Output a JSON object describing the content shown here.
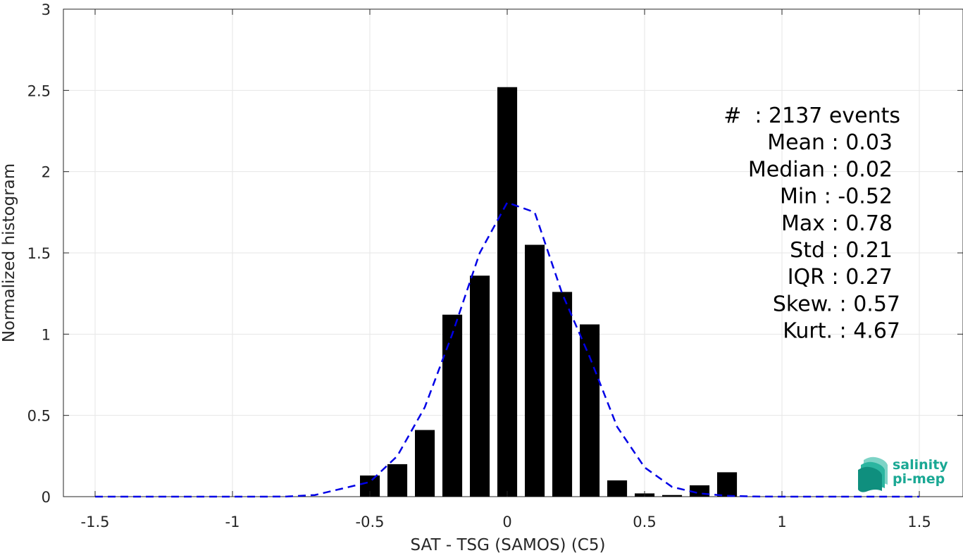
{
  "chart_data": {
    "type": "bar",
    "xlabel": "SAT - TSG (SAMOS) (C5)",
    "ylabel": "Normalized histogram",
    "xlim": [
      -1.5,
      1.5
    ],
    "ylim": [
      0,
      3
    ],
    "xticks": [
      "-1.5",
      "-1",
      "-0.5",
      "0",
      "0.5",
      "1",
      "1.5"
    ],
    "yticks": [
      "0",
      "0.5",
      "1",
      "1.5",
      "2",
      "2.5",
      "3"
    ],
    "grid": true,
    "bars": {
      "name": "histogram",
      "color": "#000000",
      "bin_width": 0.1,
      "x": [
        -0.5,
        -0.4,
        -0.3,
        -0.2,
        -0.1,
        0.0,
        0.1,
        0.2,
        0.3,
        0.4,
        0.5,
        0.6,
        0.7,
        0.8
      ],
      "values": [
        0.13,
        0.2,
        0.41,
        1.12,
        1.36,
        2.52,
        1.55,
        1.26,
        1.06,
        0.1,
        0.02,
        0.01,
        0.07,
        0.15
      ]
    },
    "fit": {
      "name": "fit",
      "style": "dashed",
      "color": "#0000e6",
      "x": [
        -1.5,
        -1.4,
        -1.3,
        -1.2,
        -1.1,
        -1.0,
        -0.9,
        -0.8,
        -0.7,
        -0.6,
        -0.5,
        -0.4,
        -0.3,
        -0.2,
        -0.1,
        0.0,
        0.1,
        0.2,
        0.3,
        0.4,
        0.5,
        0.6,
        0.7,
        0.8,
        0.9,
        1.0,
        1.1,
        1.2,
        1.3,
        1.4,
        1.5
      ],
      "y": [
        0,
        0,
        0,
        0,
        0,
        0,
        0,
        0.001,
        0.01,
        0.05,
        0.09,
        0.25,
        0.55,
        1.0,
        1.5,
        1.81,
        1.75,
        1.25,
        0.86,
        0.43,
        0.18,
        0.06,
        0.02,
        0.005,
        0.001,
        0,
        0,
        0,
        0,
        0,
        0
      ]
    },
    "annotations": {
      "lines": [
        "#  : 2137 events",
        "Mean : 0.03",
        "Median : 0.02",
        "Min : -0.52",
        "Max : 0.78",
        "Std : 0.21",
        "IQR : 0.27",
        "Skew. : 0.57",
        "Kurt. : 4.67"
      ]
    }
  },
  "logo": {
    "line1": "salinity",
    "line2": "pi-mep",
    "colors": [
      "#0f8f7e",
      "#2bb5a0",
      "#7dd3c6"
    ]
  }
}
